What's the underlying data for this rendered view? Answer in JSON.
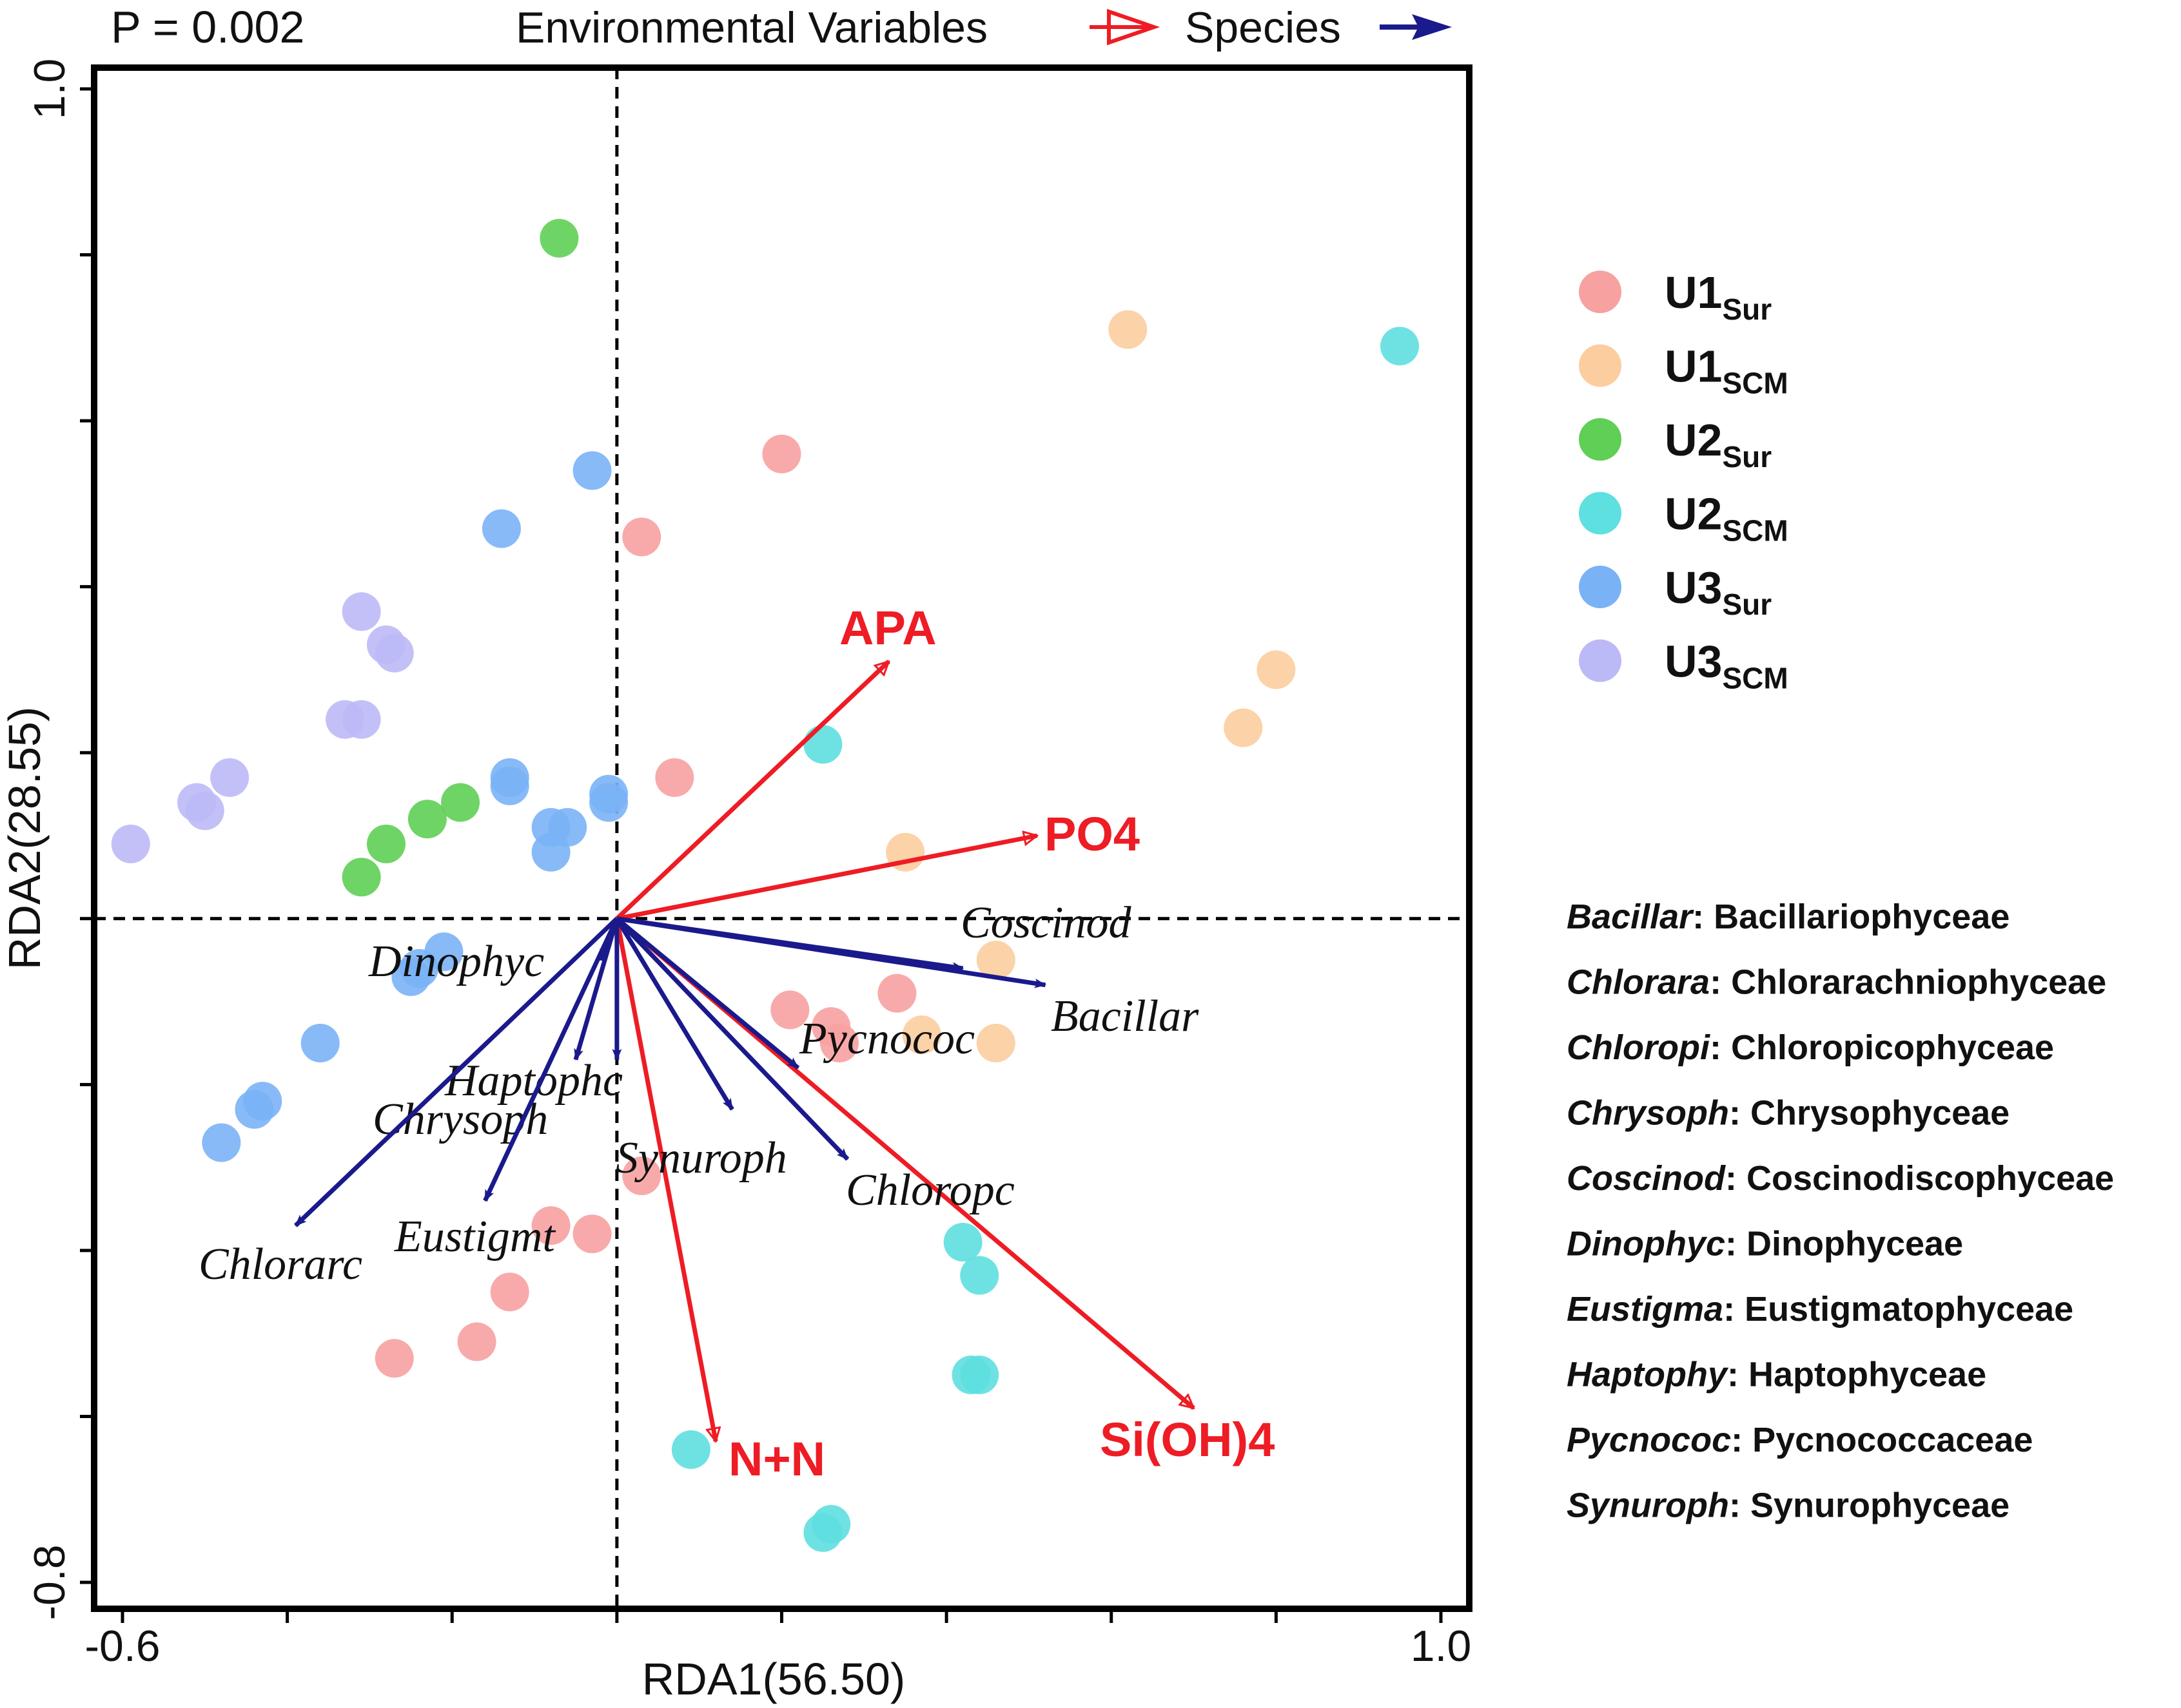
{
  "header": {
    "p_value": "P = 0.002",
    "env_legend_label": "Environmental Variables",
    "species_legend_label": "Species"
  },
  "colors": {
    "env_arrow": "#ee1c24",
    "species_arrow": "#1a1a8c",
    "axis": "#000000"
  },
  "chart_data": {
    "type": "scatter",
    "title": "",
    "xlabel": "RDA1(56.50)",
    "ylabel": "RDA2(28.55)",
    "xlim": [
      -0.6,
      1.0
    ],
    "ylim": [
      -0.8,
      1.0
    ],
    "x_tick_labels": [
      {
        "value": -0.6,
        "label": "-0.6"
      },
      {
        "value": 1.0,
        "label": "1.0"
      }
    ],
    "y_tick_labels": [
      {
        "value": 1.0,
        "label": "1.0"
      },
      {
        "value": -0.8,
        "label": "-0.8"
      }
    ],
    "x_minor_ticks": [
      -0.4,
      -0.2,
      0.0,
      0.2,
      0.4,
      0.6,
      0.8
    ],
    "y_minor_ticks": [
      0.8,
      0.6,
      0.4,
      0.2,
      0.0,
      -0.2,
      -0.4,
      -0.6
    ],
    "reference_lines": {
      "x": 0,
      "y": 0,
      "style": "dashed"
    },
    "series": [
      {
        "name": "U1",
        "sub": "Sur",
        "color": "#f7a1a1",
        "points": [
          [
            0.2,
            0.56
          ],
          [
            0.03,
            0.46
          ],
          [
            0.07,
            0.17
          ],
          [
            0.21,
            -0.11
          ],
          [
            0.26,
            -0.13
          ],
          [
            0.27,
            -0.15
          ],
          [
            0.34,
            -0.09
          ],
          [
            0.03,
            -0.31
          ],
          [
            -0.08,
            -0.37
          ],
          [
            -0.03,
            -0.38
          ],
          [
            -0.13,
            -0.45
          ],
          [
            -0.17,
            -0.51
          ],
          [
            -0.27,
            -0.53
          ]
        ]
      },
      {
        "name": "U1",
        "sub": "SCM",
        "color": "#fccd9e",
        "points": [
          [
            0.62,
            0.71
          ],
          [
            0.8,
            0.3
          ],
          [
            0.76,
            0.23
          ],
          [
            0.35,
            0.08
          ],
          [
            0.46,
            -0.05
          ],
          [
            0.37,
            -0.14
          ],
          [
            0.46,
            -0.15
          ]
        ]
      },
      {
        "name": "U2",
        "sub": "Sur",
        "color": "#5fcf55",
        "points": [
          [
            -0.07,
            0.82
          ],
          [
            -0.19,
            0.14
          ],
          [
            -0.23,
            0.12
          ],
          [
            -0.28,
            0.09
          ],
          [
            -0.31,
            0.05
          ]
        ]
      },
      {
        "name": "U2",
        "sub": "SCM",
        "color": "#5edfe0",
        "points": [
          [
            0.95,
            0.69
          ],
          [
            0.25,
            0.21
          ],
          [
            0.42,
            -0.39
          ],
          [
            0.44,
            -0.43
          ],
          [
            0.43,
            -0.55
          ],
          [
            0.44,
            -0.55
          ],
          [
            0.09,
            -0.64
          ],
          [
            0.26,
            -0.73
          ],
          [
            0.25,
            -0.74
          ]
        ]
      },
      {
        "name": "U3",
        "sub": "Sur",
        "color": "#7ab2f6",
        "points": [
          [
            -0.03,
            0.54
          ],
          [
            -0.14,
            0.47
          ],
          [
            -0.13,
            0.16
          ],
          [
            -0.13,
            0.17
          ],
          [
            -0.01,
            0.14
          ],
          [
            -0.01,
            0.15
          ],
          [
            -0.08,
            0.11
          ],
          [
            -0.06,
            0.11
          ],
          [
            -0.08,
            0.08
          ],
          [
            -0.21,
            -0.04
          ],
          [
            -0.24,
            -0.06
          ],
          [
            -0.25,
            -0.07
          ],
          [
            -0.36,
            -0.15
          ],
          [
            -0.43,
            -0.22
          ],
          [
            -0.44,
            -0.23
          ],
          [
            -0.48,
            -0.27
          ]
        ]
      },
      {
        "name": "U3",
        "sub": "SCM",
        "color": "#bcb9f7",
        "points": [
          [
            -0.31,
            0.37
          ],
          [
            -0.28,
            0.33
          ],
          [
            -0.27,
            0.32
          ],
          [
            -0.33,
            0.24
          ],
          [
            -0.31,
            0.24
          ],
          [
            -0.47,
            0.17
          ],
          [
            -0.51,
            0.14
          ],
          [
            -0.5,
            0.13
          ],
          [
            -0.59,
            0.09
          ]
        ]
      }
    ],
    "env_arrows": [
      {
        "label": "APA",
        "x": 0.33,
        "y": 0.31
      },
      {
        "label": "PO4",
        "x": 0.51,
        "y": 0.1
      },
      {
        "label": "N+N",
        "x": 0.12,
        "y": -0.63
      },
      {
        "label": "Si(OH)4",
        "x": 0.7,
        "y": -0.59
      }
    ],
    "species_arrows": [
      {
        "label": "Coscinod",
        "x": 0.42,
        "y": -0.06
      },
      {
        "label": "Bacillar",
        "x": 0.52,
        "y": -0.08
      },
      {
        "label": "Pycnococ",
        "x": 0.22,
        "y": -0.18
      },
      {
        "label": "Chloropc",
        "x": 0.28,
        "y": -0.29
      },
      {
        "label": "Synuroph",
        "x": 0.14,
        "y": -0.23
      },
      {
        "label": "Dinophyc",
        "x": -0.02,
        "y": -0.05
      },
      {
        "label": "Haptophc",
        "x": 0.0,
        "y": -0.17
      },
      {
        "label": "Chrysoph",
        "x": -0.05,
        "y": -0.17
      },
      {
        "label": "Eustigmt",
        "x": -0.16,
        "y": -0.34
      },
      {
        "label": "Chlorarc",
        "x": -0.39,
        "y": -0.37
      }
    ]
  },
  "abbreviations": [
    {
      "abbr": "Bacillar",
      "full": "Bacillariophyceae"
    },
    {
      "abbr": "Chlorara",
      "full": "Chlorarachniophyceae"
    },
    {
      "abbr": "Chloropi",
      "full": "Chloropicophyceae"
    },
    {
      "abbr": "Chrysoph",
      "full": "Chrysophyceae"
    },
    {
      "abbr": "Coscinod",
      "full": "Coscinodiscophyceae"
    },
    {
      "abbr": "Dinophyc",
      "full": "Dinophyceae"
    },
    {
      "abbr": "Eustigma",
      "full": "Eustigmatophyceae"
    },
    {
      "abbr": "Haptophy",
      "full": "Haptophyceae"
    },
    {
      "abbr": "Pycnococ",
      "full": "Pycnococcaceae"
    },
    {
      "abbr": "Synuroph",
      "full": "Synurophyceae"
    }
  ]
}
